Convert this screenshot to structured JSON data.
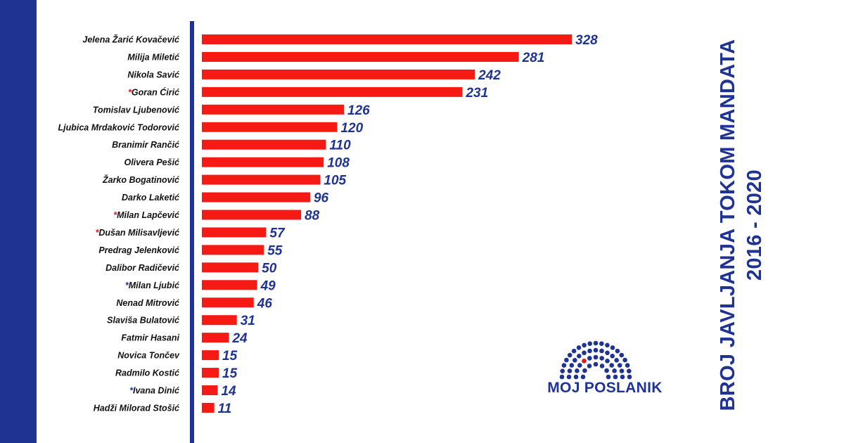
{
  "colors": {
    "bar": "#f61a14",
    "accent": "#1f3393",
    "value": "#1f3393",
    "star_red": "#e8141c",
    "star_blue": "#1f3393",
    "logo_highlight": "#e8141c"
  },
  "title": {
    "line1": "BROJ JAVLJANJA TOKOM MANDATA",
    "line2": "2016 - 2020"
  },
  "logo": {
    "text": "MOJ POSLANIK",
    "icon": "parliament-hemicycle-icon"
  },
  "chart_data": {
    "type": "bar",
    "orientation": "horizontal",
    "title": "BROJ JAVLJANJA TOKOM MANDATA 2016 - 2020",
    "categories": [
      "Jelena Žarić Kovačević",
      "Milija Miletić",
      "Nikola Savić",
      "Goran Ćirić",
      "Tomislav Ljubenović",
      "Ljubica Mrdaković Todorović",
      "Branimir Rančić",
      "Olivera Pešić",
      "Žarko Bogatinović",
      "Darko Laketić",
      "Milan Lapčević",
      "Dušan Milisavljević",
      "Predrag Jelenković",
      "Dalibor Radičević",
      "Milan Ljubić",
      "Nenad Mitrović",
      "Slaviša Bulatović",
      "Fatmir Hasani",
      "Novica Tončev",
      "Radmilo Kostić",
      "Ivana Dinić",
      "Hadži Milorad Stošić"
    ],
    "markers": [
      "",
      "",
      "",
      "*",
      "",
      "",
      "",
      "",
      "",
      "",
      "*",
      "*",
      "",
      "",
      "*",
      "",
      "",
      "",
      "",
      "",
      "*",
      ""
    ],
    "marker_colors": [
      "",
      "",
      "",
      "red",
      "",
      "",
      "",
      "",
      "",
      "",
      "red",
      "red",
      "",
      "",
      "blue",
      "",
      "",
      "",
      "",
      "",
      "blue",
      ""
    ],
    "values": [
      328,
      281,
      242,
      231,
      126,
      120,
      110,
      108,
      105,
      96,
      88,
      57,
      55,
      50,
      49,
      46,
      31,
      24,
      15,
      15,
      14,
      11
    ],
    "xlim": [
      0,
      328
    ],
    "grid": false,
    "legend": "none"
  }
}
